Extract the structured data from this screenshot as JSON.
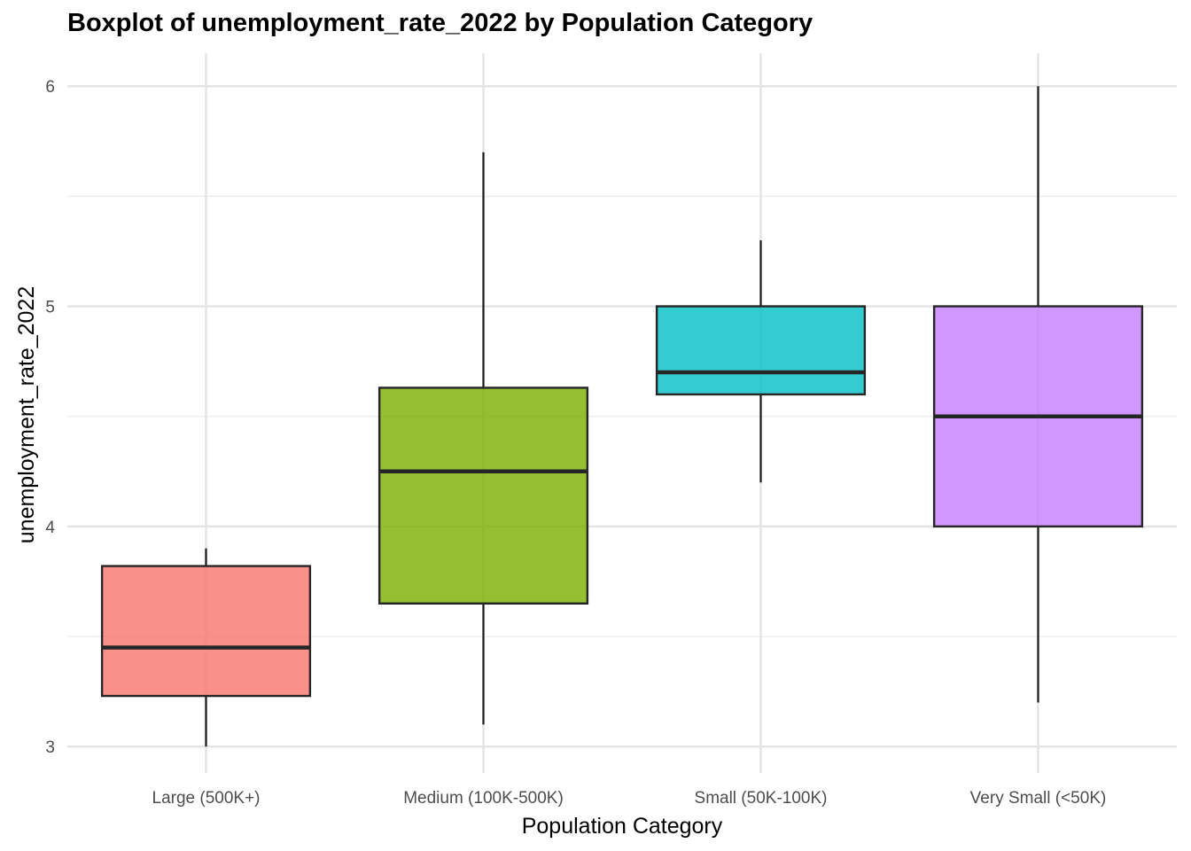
{
  "chart_data": {
    "type": "boxplot",
    "title": "Boxplot of unemployment_rate_2022 by Population Category",
    "xlabel": "Population Category",
    "ylabel": "unemployment_rate_2022",
    "ylim": [
      2.88,
      6.15
    ],
    "yticks": [
      "3",
      "4",
      "5",
      "6"
    ],
    "grid": true,
    "legend": "none",
    "categories": [
      "Large (500K+)",
      "Medium (100K-500K)",
      "Small (50K-100K)",
      "Very Small (<50K)"
    ],
    "boxes": [
      {
        "category": "Large (500K+)",
        "whisker_low": 3.0,
        "q1": 3.23,
        "median": 3.45,
        "q3": 3.82,
        "whisker_high": 3.9,
        "color": "#F8766D"
      },
      {
        "category": "Medium (100K-500K)",
        "whisker_low": 3.1,
        "q1": 3.65,
        "median": 4.25,
        "q3": 4.63,
        "whisker_high": 5.7,
        "color": "#7CAE00"
      },
      {
        "category": "Small (50K-100K)",
        "whisker_low": 4.2,
        "q1": 4.6,
        "median": 4.7,
        "q3": 5.0,
        "whisker_high": 5.3,
        "color": "#00BFC4"
      },
      {
        "category": "Very Small (<50K)",
        "whisker_low": 3.2,
        "q1": 4.0,
        "median": 4.5,
        "q3": 5.0,
        "whisker_high": 6.0,
        "color": "#C77CFF"
      }
    ]
  }
}
